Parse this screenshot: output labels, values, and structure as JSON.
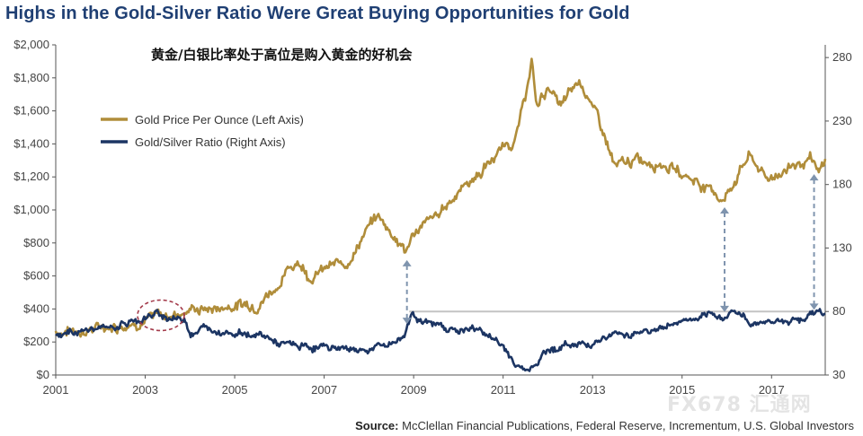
{
  "chart_data": {
    "type": "line",
    "title": "Highs in the Gold-Silver Ratio Were Great Buying Opportunities for Gold",
    "subtitle": "黄金/白银比率处于高位是购入黄金的好机会",
    "source_label": "Source:",
    "source_text": "McClellan Financial Publications, Federal Reserve, Incrementum, U.S. Global Investors",
    "watermark": "FX678 汇通网",
    "grid": false,
    "legend_position": "top-left",
    "colors": {
      "gold": "#b08d3a",
      "ratio": "#1c3563",
      "annotation": "#7f94ae",
      "reference_line": "#c4c4c4",
      "highlight": "#a33a4a"
    },
    "x_axis": {
      "min": 2001,
      "max": 2018.2,
      "ticks": [
        "2001",
        "2003",
        "2005",
        "2007",
        "2009",
        "2011",
        "2013",
        "2015",
        "2017"
      ]
    },
    "y_left": {
      "min": 0,
      "max": 2000,
      "ticks": [
        "$0",
        "$200",
        "$400",
        "$600",
        "$800",
        "$1,000",
        "$1,200",
        "$1,400",
        "$1,600",
        "$1,800",
        "$2,000"
      ]
    },
    "y_right": {
      "min": 30,
      "max": 290,
      "ticks": [
        "30",
        "80",
        "130",
        "180",
        "230",
        "280"
      ]
    },
    "series": [
      {
        "name": "Gold Price Per Ounce (Left Axis)",
        "axis": "left",
        "x": [
          2001.0,
          2001.5,
          2002.0,
          2002.5,
          2003.0,
          2003.5,
          2004.0,
          2004.5,
          2005.0,
          2005.5,
          2006.0,
          2006.4,
          2006.7,
          2007.0,
          2007.5,
          2008.0,
          2008.2,
          2008.5,
          2008.85,
          2009.0,
          2009.5,
          2010.0,
          2010.5,
          2011.0,
          2011.3,
          2011.65,
          2011.75,
          2012.0,
          2012.3,
          2012.7,
          2012.9,
          2013.3,
          2013.5,
          2014.0,
          2014.5,
          2015.0,
          2015.5,
          2015.95,
          2016.3,
          2016.5,
          2016.9,
          2017.0,
          2017.5,
          2017.9,
          2018.05,
          2018.2
        ],
        "y": [
          265,
          270,
          285,
          310,
          340,
          360,
          400,
          400,
          425,
          435,
          560,
          700,
          600,
          640,
          680,
          900,
          960,
          870,
          740,
          870,
          950,
          1120,
          1230,
          1380,
          1440,
          1890,
          1620,
          1750,
          1620,
          1780,
          1700,
          1420,
          1250,
          1300,
          1300,
          1220,
          1150,
          1060,
          1250,
          1330,
          1180,
          1200,
          1280,
          1290,
          1200,
          1300
        ]
      },
      {
        "name": "Gold/Silver Ratio (Right Axis)",
        "axis": "right",
        "x": [
          2001.0,
          2001.5,
          2002.0,
          2002.5,
          2003.0,
          2003.3,
          2003.5,
          2003.9,
          2004.0,
          2004.3,
          2005.0,
          2005.7,
          2006.0,
          2006.5,
          2007.0,
          2008.0,
          2008.5,
          2008.8,
          2008.95,
          2009.3,
          2009.7,
          2010.0,
          2010.5,
          2011.0,
          2011.3,
          2011.5,
          2012.0,
          2012.5,
          2013.0,
          2013.5,
          2014.0,
          2014.5,
          2015.0,
          2015.5,
          2016.0,
          2016.15,
          2016.5,
          2016.9,
          2017.0,
          2017.5,
          2018.0,
          2018.1,
          2018.2
        ],
        "y": [
          61,
          65,
          66,
          70,
          75,
          78,
          75,
          74,
          64,
          67,
          64,
          60,
          54,
          52,
          52,
          50,
          55,
          61,
          80,
          70,
          68,
          65,
          66,
          52,
          38,
          33,
          50,
          54,
          56,
          62,
          64,
          66,
          73,
          74,
          77,
          82,
          71,
          73,
          72,
          74,
          79,
          80,
          76
        ]
      }
    ],
    "annotations": [
      {
        "type": "arrow",
        "x": 2008.85,
        "from": "gold",
        "to": "ratio"
      },
      {
        "type": "arrow",
        "x": 2015.95,
        "from": "gold",
        "to": "ratio"
      },
      {
        "type": "arrow",
        "x": 2017.95,
        "from": "gold",
        "to": "ratio"
      },
      {
        "type": "reference_line",
        "axis": "right",
        "y": 80,
        "x_from": 2008.9,
        "x_to": 2018.1
      },
      {
        "type": "ellipse",
        "center_x": 2003.35,
        "center_y_right": 77
      }
    ]
  }
}
